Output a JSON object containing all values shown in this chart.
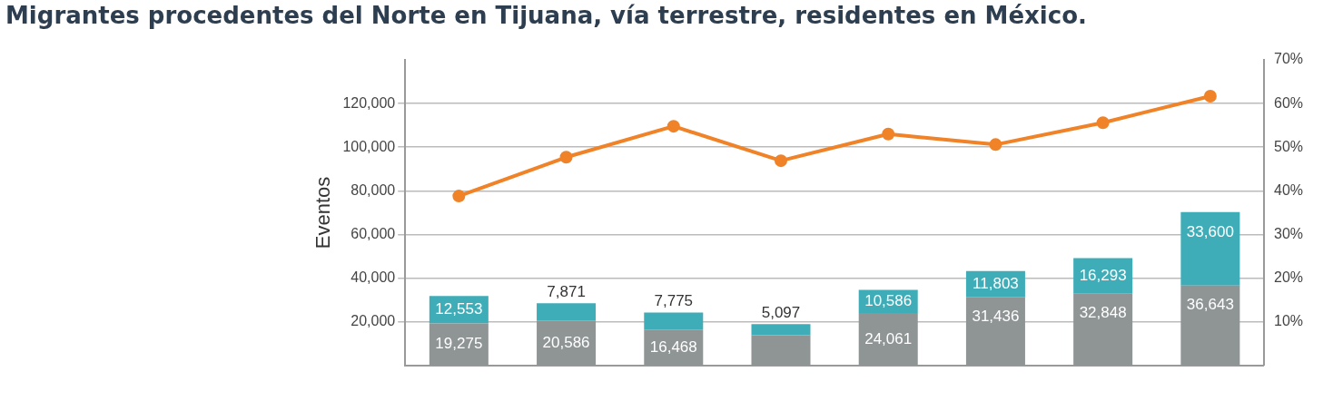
{
  "chart_data": {
    "type": "bar",
    "title": "Migrantes procedentes del Norte en Tijuana, vía terrestre, residentes en México.",
    "ylabel": "Eventos",
    "categories": [
      null,
      null,
      null,
      null,
      null,
      null,
      null,
      null
    ],
    "stacked": true,
    "grid": "y",
    "legend": false,
    "marker": "circle",
    "ylim": [
      0,
      140000
    ],
    "yticks": [
      {
        "value": 20000,
        "label": "20,000"
      },
      {
        "value": 40000,
        "label": "40,000"
      },
      {
        "value": 60000,
        "label": "60,000"
      },
      {
        "value": 80000,
        "label": "80,000"
      },
      {
        "value": 100000,
        "label": "100,000"
      },
      {
        "value": 120000,
        "label": "120,000"
      }
    ],
    "y2lim": [
      0,
      70
    ],
    "y2ticks": [
      {
        "value": 10,
        "label": "10%"
      },
      {
        "value": 20,
        "label": "20%"
      },
      {
        "value": 30,
        "label": "30%"
      },
      {
        "value": 40,
        "label": "40%"
      },
      {
        "value": 50,
        "label": "50%"
      },
      {
        "value": 60,
        "label": "60%"
      },
      {
        "value": 70,
        "label": "70%"
      }
    ],
    "series": [
      {
        "color": "#8f9494",
        "values": [
          19275,
          20586,
          16468,
          13800,
          24061,
          31436,
          32848,
          36643
        ],
        "value_labels": [
          "19,275",
          "20,586",
          "16,468",
          null,
          "24,061",
          "31,436",
          "32,848",
          "36,643"
        ]
      },
      {
        "color": "#3fadb8",
        "values": [
          12553,
          7871,
          7775,
          5097,
          10586,
          11803,
          16293,
          33600
        ],
        "value_labels": [
          "12,553",
          "7,871",
          "7,775",
          "5,097",
          "10,586",
          "11,803",
          "16,293",
          "33,600"
        ]
      },
      {
        "type": "line",
        "axis": "y2",
        "color": "#f08228",
        "values": [
          38.8,
          47.7,
          54.8,
          46.9,
          53.0,
          50.6,
          55.6,
          61.7
        ]
      }
    ]
  }
}
